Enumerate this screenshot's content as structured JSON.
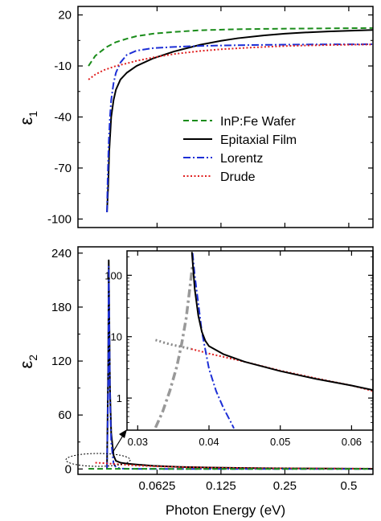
{
  "colors": {
    "inp_wafer": "#1a8c1a",
    "epitaxial": "#000000",
    "lorentz": "#1d2fd6",
    "drude": "#e02020",
    "inset_lorentz_component": "#999999",
    "inset_drude_component": "#888888"
  },
  "chart_data": [
    {
      "id": "eps1",
      "type": "line",
      "ylabel": "ε",
      "ylabel_sub": "1",
      "xscale": "log2",
      "xlim": [
        0.0265,
        0.65
      ],
      "ylim": [
        -105,
        25
      ],
      "yticks": [
        20,
        -10,
        -40,
        -70,
        -100
      ],
      "ytick_labels": [
        "20",
        "-10",
        "-40",
        "-70",
        "-100"
      ],
      "legend": {
        "position": "center-right",
        "entries": [
          {
            "label": "InP:Fe Wafer",
            "series": "inp_wafer",
            "style": "dashed"
          },
          {
            "label": "Epitaxial Film",
            "series": "epitaxial",
            "style": "solid"
          },
          {
            "label": "Lorentz",
            "series": "lorentz",
            "style": "dashdot"
          },
          {
            "label": "Drude",
            "series": "drude",
            "style": "dotted"
          }
        ]
      },
      "series": [
        {
          "key": "inp_wafer",
          "x": [
            0.0297,
            0.032,
            0.036,
            0.04,
            0.045,
            0.05,
            0.06,
            0.075,
            0.1,
            0.15,
            0.2,
            0.3,
            0.4,
            0.5,
            0.65
          ],
          "y": [
            -10,
            -4,
            1,
            4,
            6,
            7.5,
            9,
            10,
            11,
            11.6,
            11.8,
            12,
            12.1,
            12.2,
            12.3
          ]
        },
        {
          "key": "epitaxial",
          "x": [
            0.0363,
            0.0368,
            0.0372,
            0.038,
            0.039,
            0.04,
            0.042,
            0.045,
            0.05,
            0.06,
            0.075,
            0.1,
            0.125,
            0.15,
            0.2,
            0.25,
            0.3,
            0.4,
            0.5,
            0.65
          ],
          "y": [
            -96,
            -80,
            -60,
            -40,
            -30,
            -24,
            -18,
            -14,
            -10,
            -5.5,
            -1.5,
            2.5,
            4.8,
            6.3,
            8,
            9,
            9.6,
            10.3,
            10.7,
            11.2
          ]
        },
        {
          "key": "lorentz",
          "x": [
            0.0363,
            0.0366,
            0.037,
            0.0375,
            0.038,
            0.039,
            0.04,
            0.042,
            0.045,
            0.05,
            0.06,
            0.075,
            0.1,
            0.15,
            0.2,
            0.3,
            0.4,
            0.5,
            0.65
          ],
          "y": [
            -96,
            -75,
            -55,
            -40,
            -30,
            -20,
            -14,
            -8,
            -3.5,
            -1,
            0.5,
            1.2,
            1.8,
            2.2,
            2.4,
            2.6,
            2.7,
            2.7,
            2.8
          ]
        },
        {
          "key": "drude",
          "x": [
            0.0297,
            0.032,
            0.035,
            0.04,
            0.045,
            0.05,
            0.06,
            0.075,
            0.1,
            0.125,
            0.15,
            0.2,
            0.25,
            0.3,
            0.4,
            0.5,
            0.65
          ],
          "y": [
            -18,
            -15,
            -12.5,
            -10,
            -8.5,
            -7,
            -5,
            -3,
            -1.2,
            -0.2,
            0.4,
            1.2,
            1.7,
            2.0,
            2.3,
            2.5,
            2.6
          ]
        }
      ]
    },
    {
      "id": "eps2",
      "type": "line",
      "ylabel": "ε",
      "ylabel_sub": "2",
      "xlabel": "Photon Energy (eV)",
      "xscale": "log2",
      "xlim": [
        0.0265,
        0.65
      ],
      "ylim": [
        -6,
        247
      ],
      "xticks": [
        0.0625,
        0.125,
        0.25,
        0.5
      ],
      "xtick_labels": [
        "0.0625",
        "0.125",
        "0.25",
        "0.5"
      ],
      "yticks": [
        0,
        60,
        120,
        180,
        240
      ],
      "ytick_labels": [
        "0",
        "60",
        "120",
        "180",
        "240"
      ],
      "series": [
        {
          "key": "epitaxial",
          "x": [
            0.0363,
            0.0368,
            0.037,
            0.0375,
            0.038,
            0.039,
            0.04,
            0.042,
            0.045,
            0.05,
            0.06,
            0.08,
            0.1,
            0.15,
            0.2,
            0.3,
            0.5,
            0.65
          ],
          "y": [
            0,
            120,
            232,
            90,
            40,
            15,
            9,
            7,
            6,
            5,
            3.5,
            2.3,
            1.8,
            1.2,
            0.8,
            0.6,
            0.4,
            0.3
          ]
        },
        {
          "key": "lorentz",
          "x": [
            0.0363,
            0.0368,
            0.037,
            0.0375,
            0.038,
            0.039,
            0.04,
            0.042,
            0.045,
            0.05,
            0.1,
            0.65
          ],
          "y": [
            0,
            100,
            225,
            80,
            30,
            6,
            2,
            0.5,
            0.2,
            0.1,
            0,
            0
          ]
        },
        {
          "key": "drude",
          "x": [
            0.032,
            0.035,
            0.037,
            0.04,
            0.045,
            0.05,
            0.06,
            0.08,
            0.1,
            0.15,
            0.2,
            0.3,
            0.5,
            0.65
          ],
          "y": [
            7,
            6.5,
            6,
            5.5,
            4.5,
            3.8,
            3,
            2.2,
            1.6,
            1.1,
            0.8,
            0.6,
            0.4,
            0.3
          ]
        },
        {
          "key": "inp_wafer",
          "x": [
            0.0297,
            0.04,
            0.06,
            0.1,
            0.2,
            0.4,
            0.65
          ],
          "y": [
            0.2,
            0.15,
            0.1,
            0.05,
            0.03,
            0.02,
            0.01
          ]
        }
      ]
    },
    {
      "id": "inset",
      "type": "line",
      "xscale": "linear",
      "yscale": "log10",
      "xlim": [
        0.0285,
        0.063
      ],
      "ylim": [
        0.3,
        250
      ],
      "xticks": [
        0.03,
        0.04,
        0.05,
        0.06
      ],
      "xtick_labels": [
        "0.03",
        "0.04",
        "0.05",
        "0.06"
      ],
      "yticks": [
        1,
        10,
        100
      ],
      "ytick_labels": [
        "1",
        "10",
        "100"
      ],
      "series": [
        {
          "key": "epitaxial",
          "x": [
            0.0376,
            0.0378,
            0.038,
            0.0385,
            0.039,
            0.0395,
            0.04,
            0.042,
            0.045,
            0.05,
            0.055,
            0.06,
            0.063
          ],
          "y": [
            240,
            120,
            60,
            22,
            12,
            8.5,
            7,
            5.2,
            3.9,
            2.75,
            2.05,
            1.6,
            1.35
          ]
        },
        {
          "key": "lorentz",
          "x": [
            0.0377,
            0.038,
            0.0385,
            0.039,
            0.0395,
            0.04,
            0.041,
            0.042,
            0.043,
            0.0435
          ],
          "y": [
            230,
            100,
            35,
            12,
            6,
            3,
            1.3,
            0.7,
            0.42,
            0.32
          ]
        },
        {
          "key": "drude",
          "x": [
            0.0375,
            0.038,
            0.039,
            0.04,
            0.042,
            0.045,
            0.05,
            0.055,
            0.06,
            0.063
          ],
          "y": [
            6.3,
            6.1,
            5.7,
            5.3,
            4.7,
            3.9,
            2.8,
            2.1,
            1.6,
            1.3
          ]
        },
        {
          "key": "lorentz_component",
          "style": "dashdot",
          "x": [
            0.0325,
            0.0335,
            0.0345,
            0.0355,
            0.0362,
            0.0368,
            0.0373,
            0.0377
          ],
          "y": [
            0.33,
            0.6,
            1.3,
            3.3,
            8,
            20,
            60,
            150
          ]
        },
        {
          "key": "drude_component",
          "style": "dotted",
          "x": [
            0.0325,
            0.033,
            0.034,
            0.035,
            0.036,
            0.037,
            0.0375
          ],
          "y": [
            8.8,
            8.5,
            7.8,
            7.3,
            6.9,
            6.5,
            6.3
          ]
        }
      ]
    }
  ]
}
